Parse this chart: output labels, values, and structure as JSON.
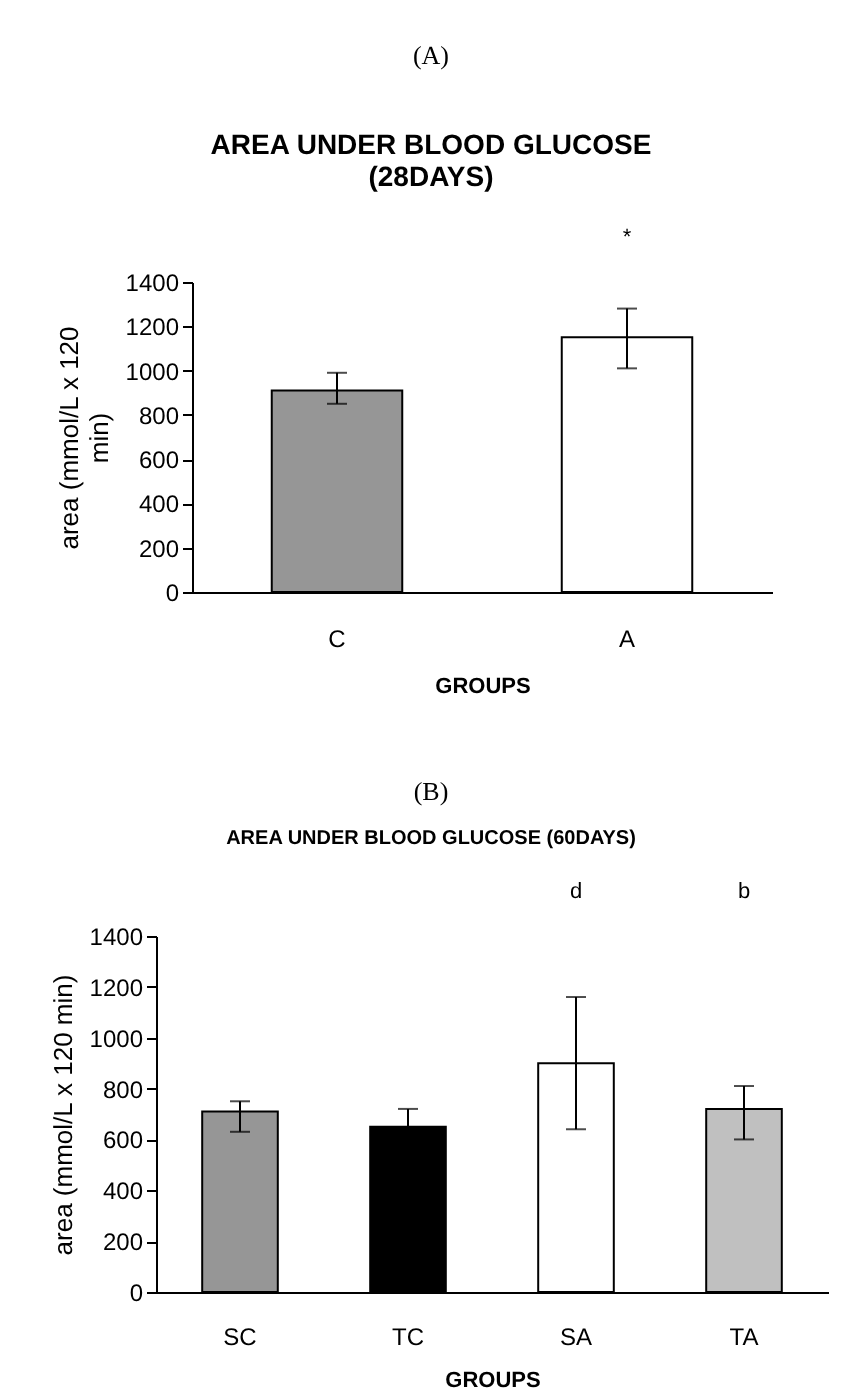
{
  "chart_data": [
    {
      "type": "bar",
      "title": "AREA UNDER BLOOD GLUCOSE (28DAYS)",
      "xlabel": "GROUPS",
      "ylabel": "area (mmol/L x 120 min)",
      "categories": [
        "C",
        "A"
      ],
      "values": [
        910,
        1150
      ],
      "colors": [
        "#969696",
        "#ffffff"
      ],
      "errors": [
        [
          850,
          990
        ],
        [
          1010,
          1280
        ]
      ],
      "ylim": [
        0,
        1400
      ],
      "yticks": [
        0,
        200,
        400,
        600,
        800,
        1000,
        1200,
        1400
      ],
      "grid": false,
      "annotations": [
        "(A)",
        "*"
      ]
    },
    {
      "type": "bar",
      "title": "AREA UNDER BLOOD GLUCOSE (60DAYS)",
      "xlabel": "GROUPS",
      "ylabel": "area (mmol/L x 120 min)",
      "categories": [
        "SC",
        "TC",
        "SA",
        "TA"
      ],
      "values": [
        710,
        650,
        900,
        720
      ],
      "colors": [
        "#969696",
        "#000000",
        "#ffffff",
        "#c0c0c0"
      ],
      "errors": [
        [
          630,
          750
        ],
        70,
        [
          640,
          1160
        ],
        [
          600,
          810
        ]
      ],
      "ylim": [
        0,
        1400
      ],
      "yticks": [
        0,
        200,
        400,
        600,
        800,
        1000,
        1200,
        1400
      ],
      "grid": false,
      "annotations": [
        "(B)",
        "d",
        "b"
      ]
    }
  ]
}
